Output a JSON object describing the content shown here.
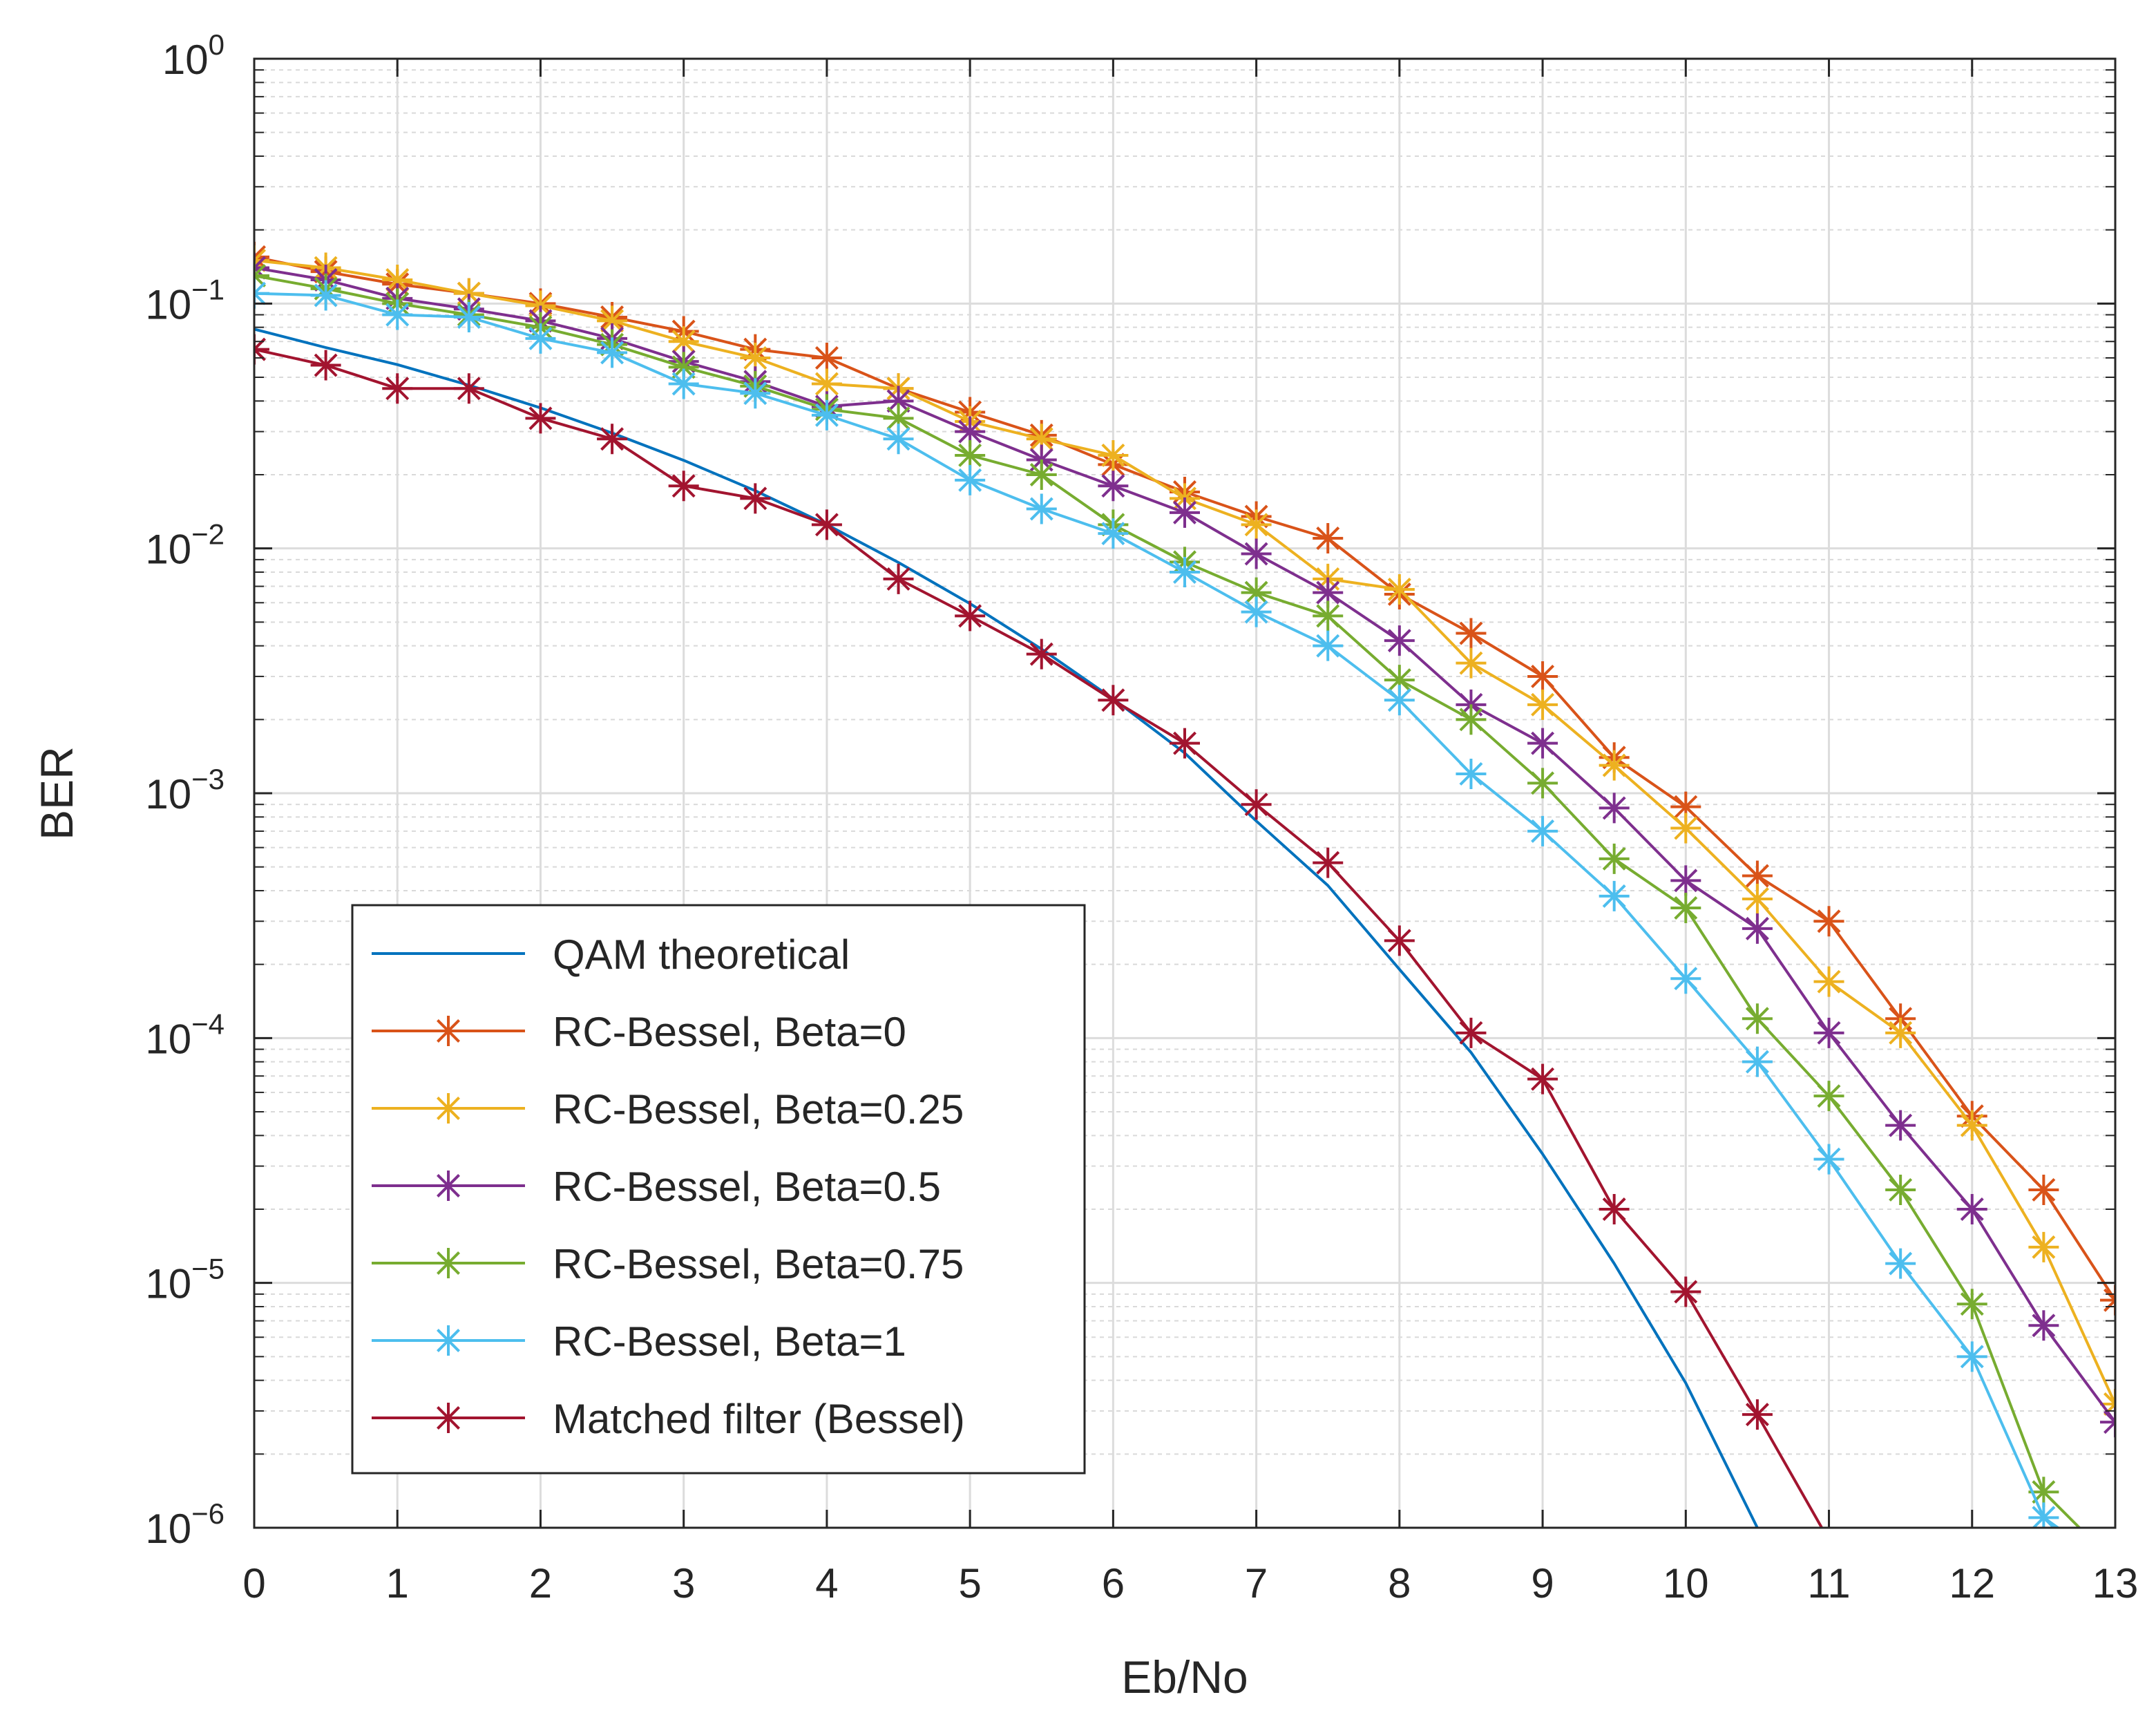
{
  "chart_data": {
    "type": "line",
    "title": "",
    "xlabel": "Eb/No",
    "ylabel": "BER",
    "xlim": [
      0,
      13
    ],
    "ylim": [
      1e-06,
      1
    ],
    "yscale": "log",
    "x_ticks": [
      "0",
      "1",
      "2",
      "3",
      "4",
      "5",
      "6",
      "7",
      "8",
      "9",
      "10",
      "11",
      "12",
      "13"
    ],
    "x_tick_values": [
      0,
      1,
      2,
      3,
      4,
      5,
      6,
      7,
      8,
      9,
      10,
      11,
      12,
      13
    ],
    "y_ticks": [
      {
        "value": 1,
        "base": "10",
        "exp": "0"
      },
      {
        "value": 0.1,
        "base": "10",
        "exp": "−1"
      },
      {
        "value": 0.01,
        "base": "10",
        "exp": "−2"
      },
      {
        "value": 0.001,
        "base": "10",
        "exp": "−3"
      },
      {
        "value": 0.0001,
        "base": "10",
        "exp": "−4"
      },
      {
        "value": 1e-05,
        "base": "10",
        "exp": "−5"
      },
      {
        "value": 1e-06,
        "base": "10",
        "exp": "−6"
      }
    ],
    "grid": true,
    "minor_grid": true,
    "legend_position": "lower-left",
    "series": [
      {
        "name": "QAM theoretical",
        "color": "#0072BD",
        "marker": "none",
        "x": [
          0,
          0.5,
          1,
          1.5,
          2,
          2.5,
          3,
          3.5,
          4,
          4.5,
          5,
          5.5,
          6,
          6.5,
          7,
          7.5,
          8,
          8.5,
          9,
          9.5,
          10,
          10.5
        ],
        "y": [
          0.0786,
          0.0661,
          0.0563,
          0.0464,
          0.0375,
          0.0296,
          0.0229,
          0.0172,
          0.0125,
          0.00876,
          0.00595,
          0.00388,
          0.00243,
          0.00146,
          0.00077,
          0.00042,
          0.000191,
          8.73e-05,
          3.36e-05,
          1.2e-05,
          3.9e-06,
          1e-06
        ]
      },
      {
        "name": "RC-Bessel, Beta=0",
        "color": "#D95319",
        "marker": "asterisk",
        "x": [
          0,
          0.5,
          1,
          1.5,
          2,
          2.5,
          3,
          3.5,
          4,
          4.5,
          5,
          5.5,
          6,
          6.5,
          7,
          7.5,
          8,
          8.5,
          9,
          9.5,
          10,
          10.5,
          11,
          11.5,
          12,
          12.5,
          13
        ],
        "y": [
          0.155,
          0.135,
          0.12,
          0.11,
          0.1,
          0.088,
          0.077,
          0.065,
          0.06,
          0.045,
          0.036,
          0.029,
          0.022,
          0.017,
          0.0135,
          0.011,
          0.0065,
          0.0045,
          0.003,
          0.0014,
          0.00088,
          0.00046,
          0.0003,
          0.00012,
          4.8e-05,
          2.4e-05,
          8.5e-06
        ]
      },
      {
        "name": "RC-Bessel, Beta=0.25",
        "color": "#EDB120",
        "marker": "asterisk",
        "x": [
          0,
          0.5,
          1,
          1.5,
          2,
          2.5,
          3,
          3.5,
          4,
          4.5,
          5,
          5.5,
          6,
          6.5,
          7,
          7.5,
          8,
          8.5,
          9,
          9.5,
          10,
          10.5,
          11,
          11.5,
          12,
          12.5,
          13
        ],
        "y": [
          0.15,
          0.14,
          0.125,
          0.11,
          0.098,
          0.085,
          0.07,
          0.06,
          0.047,
          0.045,
          0.033,
          0.028,
          0.024,
          0.016,
          0.0125,
          0.0075,
          0.0068,
          0.0034,
          0.0023,
          0.0013,
          0.00072,
          0.00037,
          0.00017,
          0.000105,
          4.4e-05,
          1.4e-05,
          3.2e-06
        ]
      },
      {
        "name": "RC-Bessel, Beta=0.5",
        "color": "#7E2F8E",
        "marker": "asterisk",
        "x": [
          0,
          0.5,
          1,
          1.5,
          2,
          2.5,
          3,
          3.5,
          4,
          4.5,
          5,
          5.5,
          6,
          6.5,
          7,
          7.5,
          8,
          8.5,
          9,
          9.5,
          10,
          10.5,
          11,
          11.5,
          12,
          12.5,
          13
        ],
        "y": [
          0.14,
          0.125,
          0.105,
          0.095,
          0.085,
          0.072,
          0.058,
          0.048,
          0.038,
          0.04,
          0.03,
          0.023,
          0.018,
          0.014,
          0.0095,
          0.0066,
          0.0042,
          0.0023,
          0.0016,
          0.00087,
          0.00044,
          0.00028,
          0.000105,
          4.4e-05,
          2e-05,
          6.7e-06,
          2.7e-06
        ]
      },
      {
        "name": "RC-Bessel, Beta=0.75",
        "color": "#77AC30",
        "marker": "asterisk",
        "x": [
          0,
          0.5,
          1,
          1.5,
          2,
          2.5,
          3,
          3.5,
          4,
          4.5,
          5,
          5.5,
          6,
          6.5,
          7,
          7.5,
          8,
          8.5,
          9,
          9.5,
          10,
          10.5,
          11,
          11.5,
          12,
          12.5,
          12.75
        ],
        "y": [
          0.13,
          0.115,
          0.1,
          0.09,
          0.08,
          0.068,
          0.055,
          0.046,
          0.037,
          0.034,
          0.024,
          0.02,
          0.0125,
          0.0088,
          0.0066,
          0.0053,
          0.0029,
          0.002,
          0.0011,
          0.00054,
          0.00034,
          0.00012,
          5.8e-05,
          2.4e-05,
          8.2e-06,
          1.4e-06,
          1e-06
        ]
      },
      {
        "name": "RC-Bessel, Beta=1",
        "color": "#4DBEEE",
        "marker": "asterisk",
        "x": [
          0,
          0.5,
          1,
          1.5,
          2,
          2.5,
          3,
          3.5,
          4,
          4.5,
          5,
          5.5,
          6,
          6.5,
          7,
          7.5,
          8,
          8.5,
          9,
          9.5,
          10,
          10.5,
          11,
          11.5,
          12,
          12.5,
          12.6
        ],
        "y": [
          0.11,
          0.108,
          0.09,
          0.088,
          0.072,
          0.063,
          0.047,
          0.043,
          0.035,
          0.028,
          0.019,
          0.0145,
          0.0115,
          0.008,
          0.0055,
          0.004,
          0.0024,
          0.0012,
          0.0007,
          0.00038,
          0.000175,
          8e-05,
          3.2e-05,
          1.2e-05,
          5e-06,
          1.1e-06,
          1e-06
        ]
      },
      {
        "name": "Matched filter (Bessel)",
        "color": "#A2142F",
        "marker": "asterisk",
        "x": [
          0,
          0.5,
          1,
          1.5,
          2,
          2.5,
          3,
          3.5,
          4,
          4.5,
          5,
          5.5,
          6,
          6.5,
          7,
          7.5,
          8,
          8.5,
          9,
          9.5,
          10,
          10.5,
          10.95
        ],
        "y": [
          0.065,
          0.056,
          0.045,
          0.045,
          0.034,
          0.028,
          0.018,
          0.016,
          0.0125,
          0.0075,
          0.0053,
          0.0037,
          0.0024,
          0.0016,
          0.0009,
          0.00052,
          0.00025,
          0.000105,
          6.8e-05,
          2e-05,
          9.2e-06,
          2.9e-06,
          1e-06
        ]
      }
    ]
  }
}
